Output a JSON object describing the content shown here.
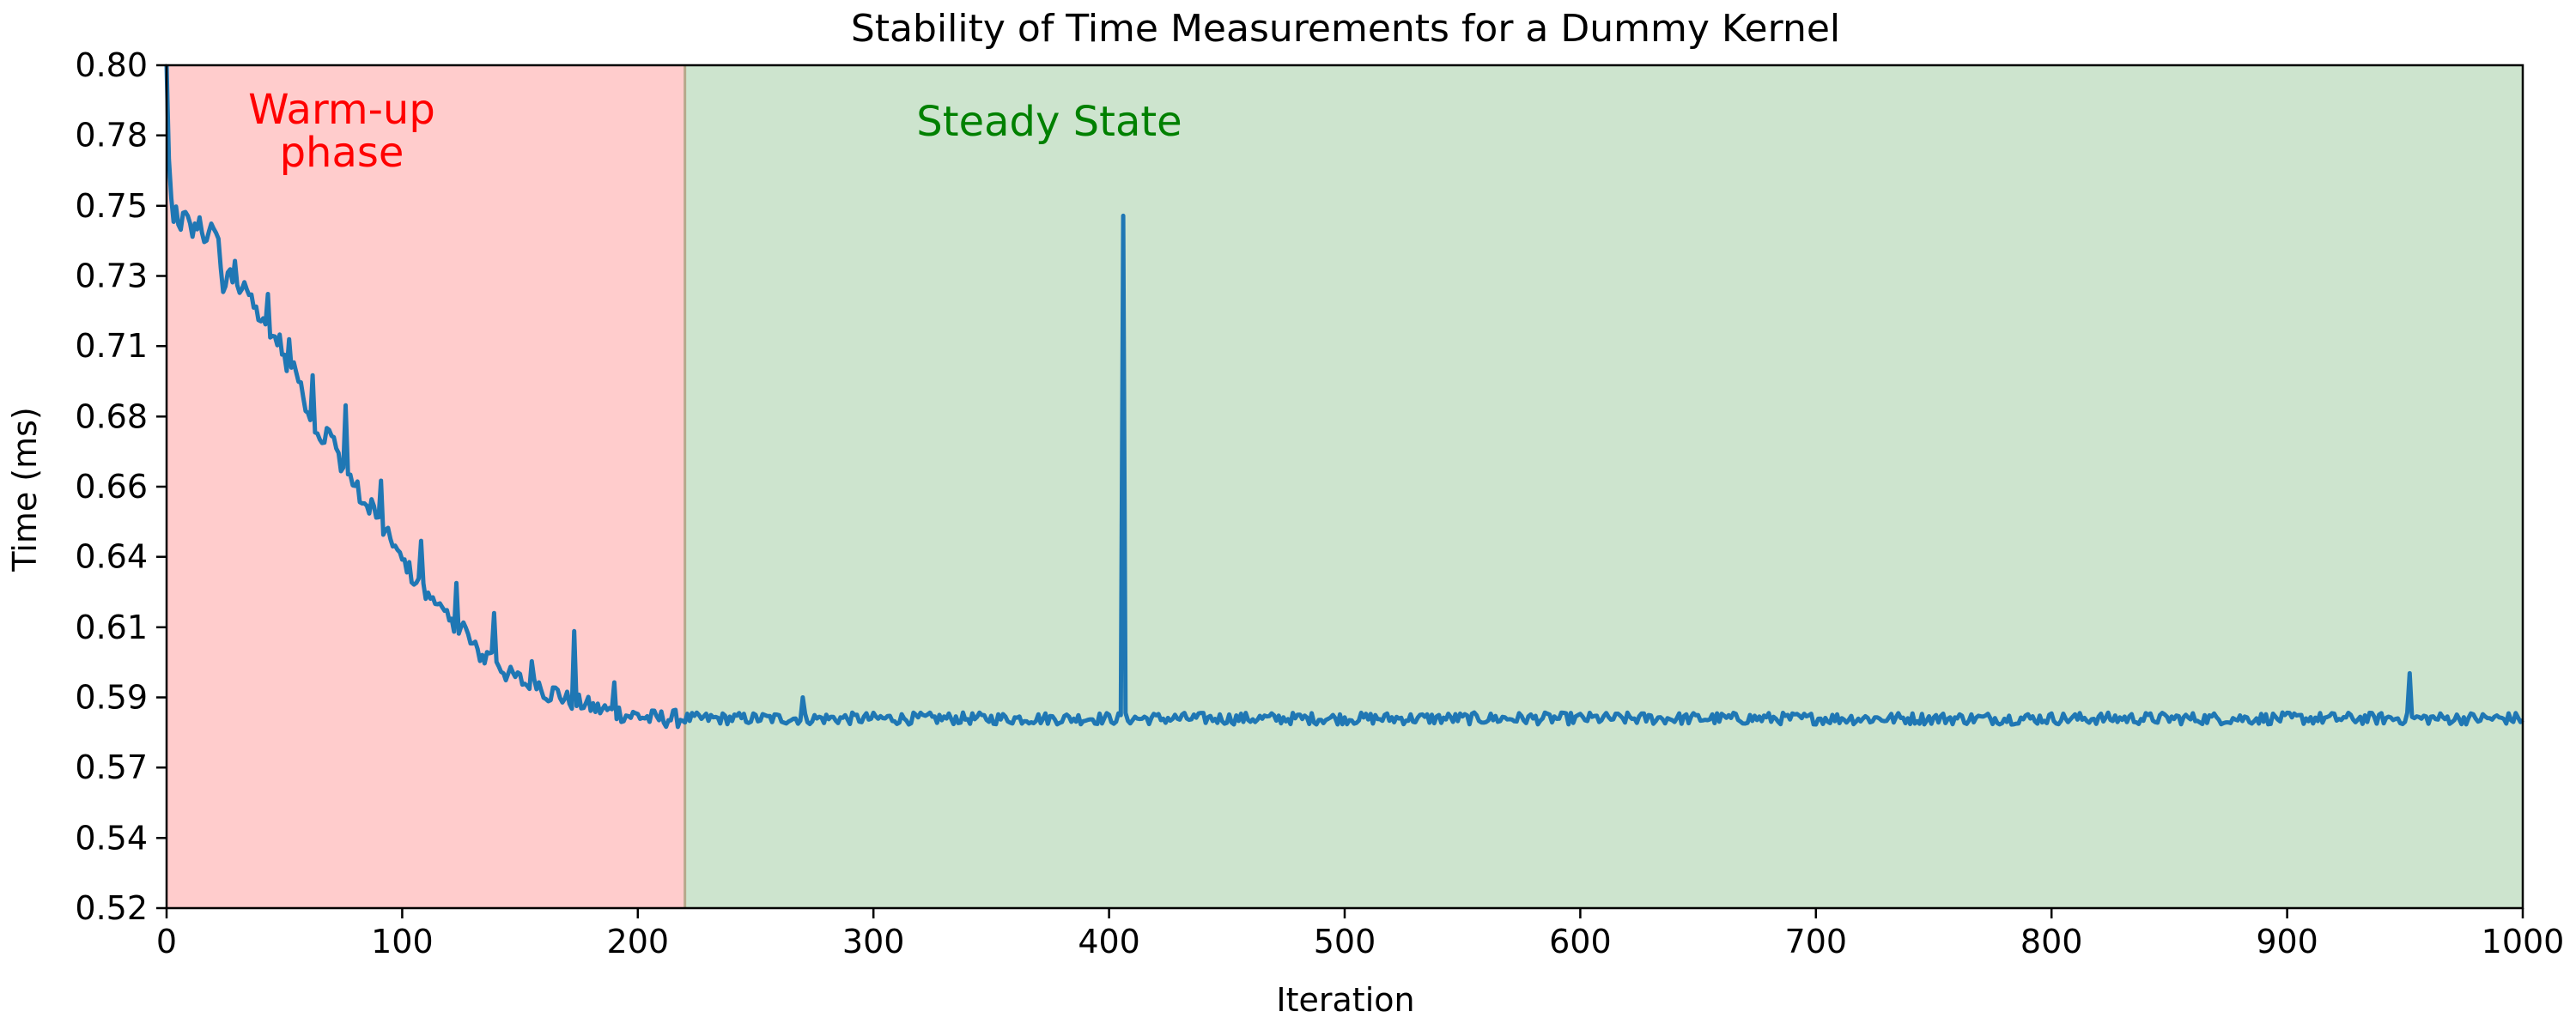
{
  "chart_data": {
    "type": "line",
    "title": "Stability of Time Measurements for a Dummy Kernel",
    "xlabel": "Iteration",
    "ylabel": "Time (ms)",
    "xlim": [
      0,
      1000
    ],
    "ylim": [
      0.52,
      0.8
    ],
    "x_ticks": [
      0,
      100,
      200,
      300,
      400,
      500,
      600,
      700,
      800,
      900,
      1000
    ],
    "x_tick_labels": [
      "0",
      "100",
      "200",
      "300",
      "400",
      "500",
      "600",
      "700",
      "800",
      "900",
      "1000"
    ],
    "y_ticks": [
      0.52,
      0.5433,
      0.5667,
      0.59,
      0.6133,
      0.6367,
      0.66,
      0.6833,
      0.7067,
      0.73,
      0.7533,
      0.7767,
      0.8
    ],
    "y_tick_labels": [
      "0.52",
      "0.54",
      "0.57",
      "0.59",
      "0.61",
      "0.64",
      "0.66",
      "0.68",
      "0.71",
      "0.73",
      "0.75",
      "0.78",
      "0.80"
    ],
    "grid": false,
    "regions": [
      {
        "label_lines": [
          "Warm-up",
          "phase"
        ],
        "x_start": 0,
        "x_end": 220,
        "color": "#ffcccc",
        "label_color": "#ff0000"
      },
      {
        "label_lines": [
          "Steady State"
        ],
        "x_start": 220,
        "x_end": 1000,
        "color": "#cde4ce",
        "label_color": "#008000"
      }
    ],
    "boundary_x": 220,
    "series": [
      {
        "color": "#1f77b4",
        "points": [
          [
            0,
            0.8
          ],
          [
            1,
            0.77
          ],
          [
            2,
            0.755
          ],
          [
            3,
            0.745
          ],
          [
            4,
            0.752
          ],
          [
            5,
            0.746
          ],
          [
            8,
            0.75
          ],
          [
            11,
            0.744
          ],
          [
            14,
            0.749
          ],
          [
            17,
            0.74
          ],
          [
            20,
            0.748
          ],
          [
            22,
            0.741
          ],
          [
            24,
            0.726
          ],
          [
            27,
            0.73
          ],
          [
            30,
            0.725
          ],
          [
            33,
            0.729
          ],
          [
            36,
            0.721
          ],
          [
            39,
            0.717
          ],
          [
            42,
            0.712
          ],
          [
            45,
            0.708
          ],
          [
            48,
            0.71
          ],
          [
            51,
            0.699
          ],
          [
            54,
            0.702
          ],
          [
            57,
            0.692
          ],
          [
            60,
            0.686
          ],
          [
            63,
            0.681
          ],
          [
            66,
            0.675
          ],
          [
            69,
            0.679
          ],
          [
            72,
            0.672
          ],
          [
            75,
            0.666
          ],
          [
            78,
            0.663
          ],
          [
            81,
            0.659
          ],
          [
            84,
            0.652
          ],
          [
            87,
            0.655
          ],
          [
            90,
            0.648
          ],
          [
            93,
            0.644
          ],
          [
            96,
            0.642
          ],
          [
            99,
            0.636
          ],
          [
            102,
            0.634
          ],
          [
            105,
            0.629
          ],
          [
            108,
            0.627
          ],
          [
            111,
            0.623
          ],
          [
            114,
            0.624
          ],
          [
            117,
            0.618
          ],
          [
            120,
            0.615
          ],
          [
            123,
            0.612
          ],
          [
            126,
            0.614
          ],
          [
            129,
            0.608
          ],
          [
            132,
            0.605
          ],
          [
            135,
            0.603
          ],
          [
            138,
            0.606
          ],
          [
            141,
            0.601
          ],
          [
            144,
            0.598
          ],
          [
            147,
            0.597
          ],
          [
            150,
            0.596
          ],
          [
            153,
            0.594
          ],
          [
            156,
            0.597
          ],
          [
            159,
            0.593
          ],
          [
            162,
            0.591
          ],
          [
            165,
            0.592
          ],
          [
            168,
            0.59
          ],
          [
            171,
            0.589
          ],
          [
            174,
            0.588
          ],
          [
            177,
            0.588
          ],
          [
            180,
            0.587
          ],
          [
            183,
            0.586
          ],
          [
            186,
            0.586
          ],
          [
            189,
            0.585
          ],
          [
            192,
            0.585
          ],
          [
            195,
            0.584
          ],
          [
            200,
            0.584
          ],
          [
            205,
            0.583
          ],
          [
            210,
            0.583
          ],
          [
            215,
            0.583
          ],
          [
            220,
            0.583
          ]
        ],
        "steady_baseline": 0.583,
        "steady_noise": 0.002,
        "spikes": [
          {
            "x": 29,
            "y": 0.735
          },
          {
            "x": 43,
            "y": 0.724
          },
          {
            "x": 52,
            "y": 0.709
          },
          {
            "x": 62,
            "y": 0.697
          },
          {
            "x": 76,
            "y": 0.687
          },
          {
            "x": 91,
            "y": 0.662
          },
          {
            "x": 108,
            "y": 0.642
          },
          {
            "x": 123,
            "y": 0.628
          },
          {
            "x": 139,
            "y": 0.618
          },
          {
            "x": 155,
            "y": 0.602
          },
          {
            "x": 173,
            "y": 0.612
          },
          {
            "x": 190,
            "y": 0.595
          },
          {
            "x": 270,
            "y": 0.59
          },
          {
            "x": 406,
            "y": 0.75
          },
          {
            "x": 952,
            "y": 0.598
          }
        ]
      }
    ]
  }
}
